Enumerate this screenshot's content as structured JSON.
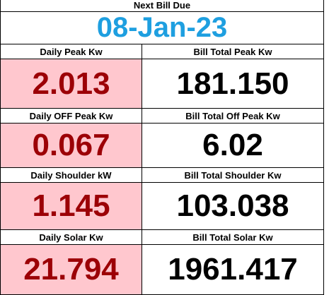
{
  "header": {
    "title": "Next Bill Due",
    "date": "08-Jan-23"
  },
  "table": {
    "rows": [
      {
        "left_label": "Daily Peak Kw",
        "left_value": "2.013",
        "right_label": "Bill Total Peak Kw",
        "right_value": "181.150"
      },
      {
        "left_label": "Daily OFF Peak Kw",
        "left_value": "0.067",
        "right_label": "Bill Total Off Peak Kw",
        "right_value": "6.02"
      },
      {
        "left_label": "Daily Shoulder kW",
        "left_value": "1.145",
        "right_label": "Bill Total Shoulder Kw",
        "right_value": "103.038"
      },
      {
        "left_label": "Daily Solar Kw",
        "left_value": "21.794",
        "right_label": "Bill Total Solar Kw",
        "right_value": "1961.417"
      }
    ]
  }
}
